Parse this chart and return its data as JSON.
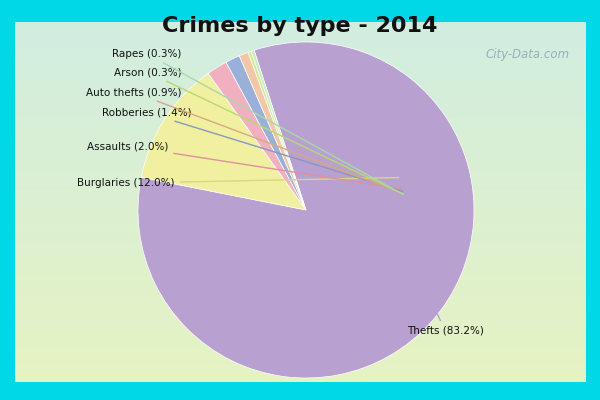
{
  "title": "Crimes by type - 2014",
  "values": [
    83.2,
    12.0,
    2.0,
    1.4,
    0.9,
    0.3,
    0.3
  ],
  "colors": [
    "#b8a0d0",
    "#f0f0a0",
    "#f0b0c0",
    "#9ab0d8",
    "#f0c8a8",
    "#d4e890",
    "#c8ecc8"
  ],
  "label_texts": [
    "Thefts (83.2%)",
    "Burglaries (12.0%)",
    "Assaults (2.0%)",
    "Robberies (1.4%)",
    "Auto thefts (0.9%)",
    "Arson (0.3%)",
    "Rapes (0.3%)"
  ],
  "line_colors": [
    "#b8a0d0",
    "#d8d880",
    "#e090a0",
    "#8898c0",
    "#d8a880",
    "#b8d870",
    "#a8d8a8"
  ],
  "border_color": "#00d8e8",
  "title_fontsize": 16,
  "watermark": "City-Data.com",
  "start_angle": 108
}
